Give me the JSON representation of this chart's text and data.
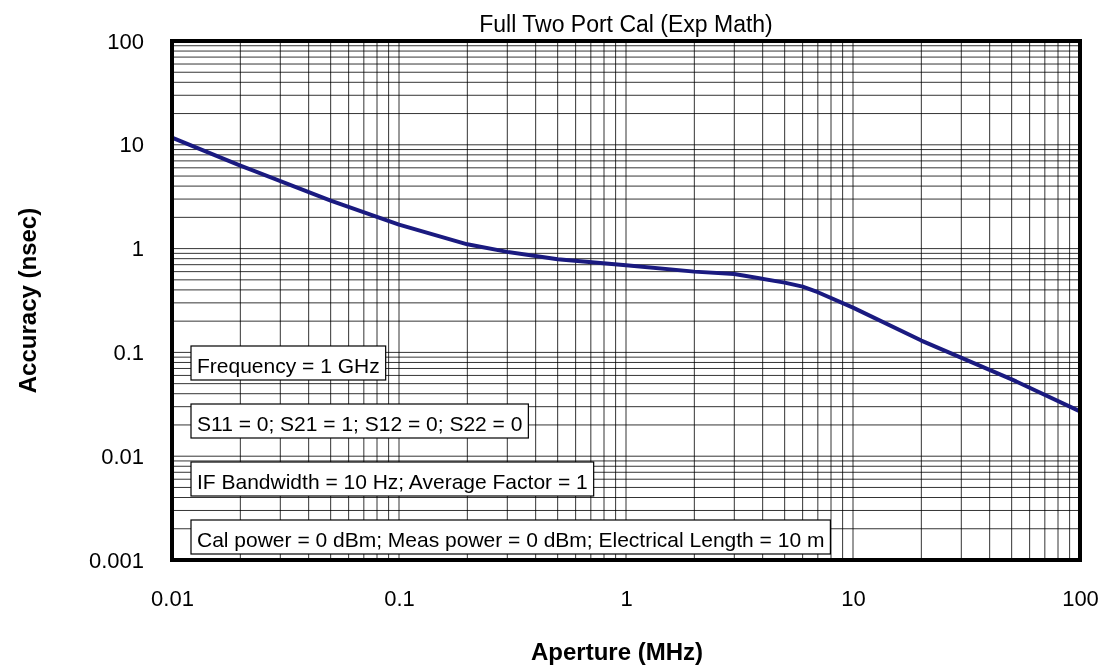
{
  "chart_data": {
    "type": "line",
    "title": "Full Two Port Cal (Exp Math)",
    "xlabel": "Aperture (MHz)",
    "ylabel": "Accuracy (nsec)",
    "x": [
      0.01,
      0.02,
      0.05,
      0.1,
      0.2,
      0.3,
      0.5,
      1,
      2,
      3,
      5,
      6,
      7,
      10,
      20,
      50,
      100
    ],
    "series": [
      {
        "color": "#1a1a80",
        "values": [
          11.7,
          6.3,
          2.9,
          1.7,
          1.1,
          0.93,
          0.79,
          0.69,
          0.6,
          0.57,
          0.47,
          0.43,
          0.38,
          0.27,
          0.13,
          0.055,
          0.027
        ]
      }
    ],
    "log": "xy",
    "xlim": [
      0.01,
      100
    ],
    "ylim": [
      0.001,
      100
    ],
    "xticks": [
      0.01,
      0.1,
      1,
      10,
      100
    ],
    "yticks": [
      0.001,
      0.01,
      0.1,
      1,
      10,
      100
    ],
    "grid": true,
    "marker": "none",
    "line_style": "solid",
    "annotations": [
      "Frequency = 1 GHz",
      "S11 = 0; S21 = 1; S12 = 0; S22 = 0",
      "IF Bandwidth = 10 Hz; Average Factor = 1",
      "Cal power = 0 dBm; Meas power = 0 dBm; Electrical Length = 10 m"
    ]
  }
}
